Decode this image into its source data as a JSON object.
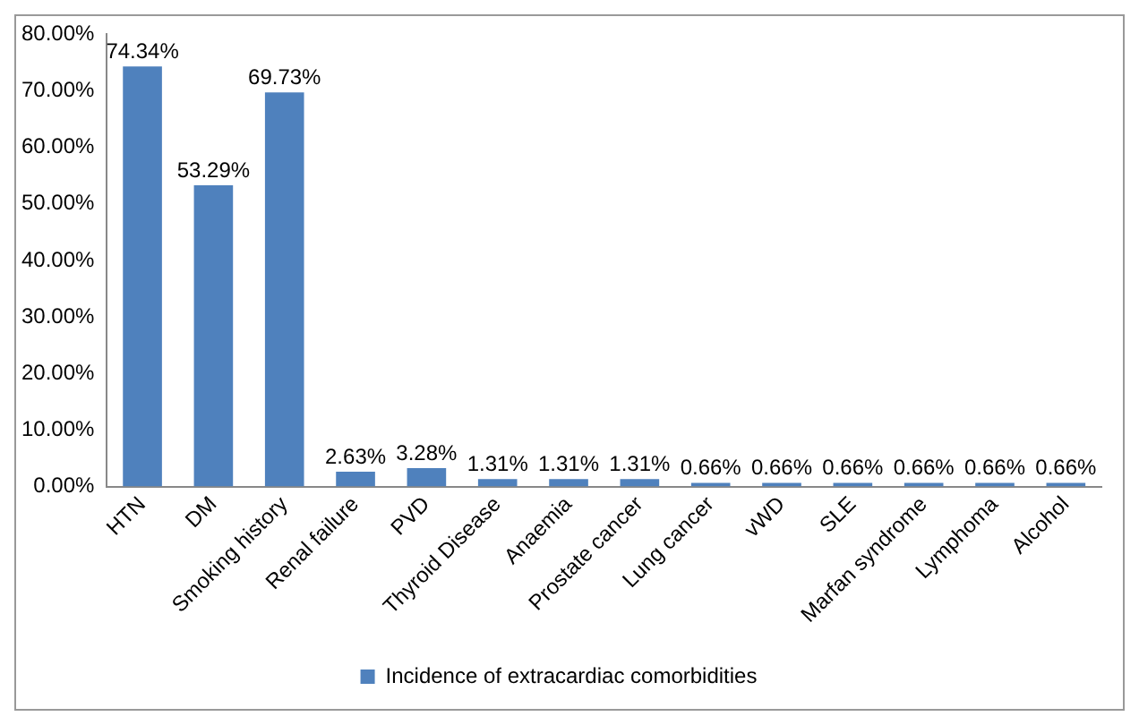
{
  "chart_data": {
    "type": "bar",
    "categories": [
      "HTN",
      "DM",
      "Smoking history",
      "Renal failure",
      "PVD",
      "Thyroid Disease",
      "Anaemia",
      "Prostate cancer",
      "Lung cancer",
      "vWD",
      "SLE",
      "Marfan syndrome",
      "Lymphoma",
      "Alcohol"
    ],
    "series": [
      {
        "name": "Incidence of extracardiac comorbidities",
        "color": "#4f81bd",
        "values": [
          74.34,
          53.29,
          69.73,
          2.63,
          3.28,
          1.31,
          1.31,
          1.31,
          0.66,
          0.66,
          0.66,
          0.66,
          0.66,
          0.66
        ],
        "value_labels": [
          "74.34%",
          "53.29%",
          "69.73%",
          "2.63%",
          "3.28%",
          "1.31%",
          "1.31%",
          "1.31%",
          "0.66%",
          "0.66%",
          "0.66%",
          "0.66%",
          "0.66%",
          "0.66%"
        ]
      }
    ],
    "ylim": [
      0,
      80
    ],
    "yticks": [
      {
        "value": 0,
        "label": "0.00%"
      },
      {
        "value": 10,
        "label": "10.00%"
      },
      {
        "value": 20,
        "label": "20.00%"
      },
      {
        "value": 30,
        "label": "30.00%"
      },
      {
        "value": 40,
        "label": "40.00%"
      },
      {
        "value": 50,
        "label": "50.00%"
      },
      {
        "value": 60,
        "label": "60.00%"
      },
      {
        "value": 70,
        "label": "70.00%"
      },
      {
        "value": 80,
        "label": "80.00%"
      }
    ],
    "grid": false,
    "legend": "bottom"
  }
}
